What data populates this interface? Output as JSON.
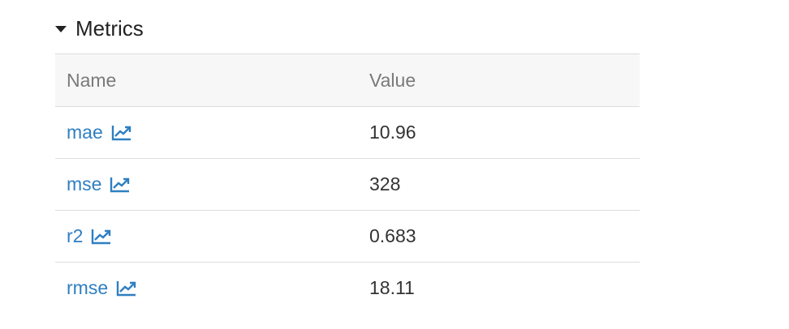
{
  "section": {
    "title": "Metrics",
    "collapse_icon": "caret-down-icon"
  },
  "table": {
    "headers": {
      "name": "Name",
      "value": "Value"
    },
    "rows": [
      {
        "name": "mae",
        "value": "10.96",
        "icon": "line-chart-icon"
      },
      {
        "name": "mse",
        "value": "328",
        "icon": "line-chart-icon"
      },
      {
        "name": "r2",
        "value": "0.683",
        "icon": "line-chart-icon"
      },
      {
        "name": "rmse",
        "value": "18.11",
        "icon": "line-chart-icon"
      }
    ]
  },
  "colors": {
    "link": "#2f7fc1",
    "header_bg": "#f7f7f7",
    "border": "#dddddd"
  }
}
